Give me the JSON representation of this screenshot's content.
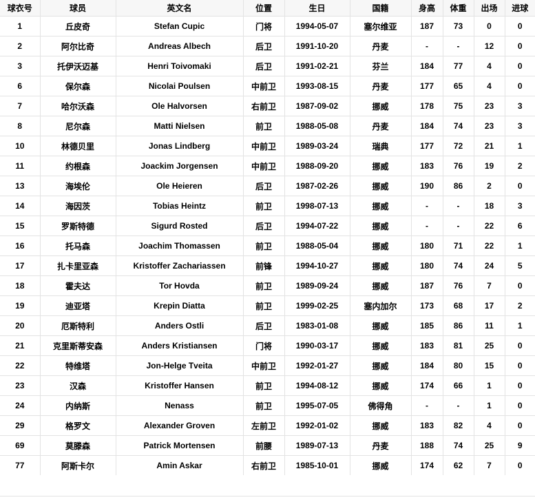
{
  "table": {
    "columns": [
      {
        "key": "jersey-number",
        "label": "球衣号"
      },
      {
        "key": "player-name",
        "label": "球员"
      },
      {
        "key": "english-name",
        "label": "英文名"
      },
      {
        "key": "position",
        "label": "位置"
      },
      {
        "key": "birthday",
        "label": "生日"
      },
      {
        "key": "nationality",
        "label": "国籍"
      },
      {
        "key": "height",
        "label": "身高"
      },
      {
        "key": "weight",
        "label": "体重"
      },
      {
        "key": "appearances",
        "label": "出场"
      },
      {
        "key": "goals",
        "label": "进球"
      }
    ],
    "rows": [
      [
        "1",
        "丘皮奇",
        "Stefan Cupic",
        "门将",
        "1994-05-07",
        "塞尔维亚",
        "187",
        "73",
        "0",
        "0"
      ],
      [
        "2",
        "阿尔比奇",
        "Andreas Albech",
        "后卫",
        "1991-10-20",
        "丹麦",
        "-",
        "-",
        "12",
        "0"
      ],
      [
        "3",
        "托伊沃迈基",
        "Henri Toivomaki",
        "后卫",
        "1991-02-21",
        "芬兰",
        "184",
        "77",
        "4",
        "0"
      ],
      [
        "6",
        "保尔森",
        "Nicolai Poulsen",
        "中前卫",
        "1993-08-15",
        "丹麦",
        "177",
        "65",
        "4",
        "0"
      ],
      [
        "7",
        "哈尔沃森",
        "Ole Halvorsen",
        "右前卫",
        "1987-09-02",
        "挪威",
        "178",
        "75",
        "23",
        "3"
      ],
      [
        "8",
        "尼尔森",
        "Matti Nielsen",
        "前卫",
        "1988-05-08",
        "丹麦",
        "184",
        "74",
        "23",
        "3"
      ],
      [
        "10",
        "林德贝里",
        "Jonas Lindberg",
        "中前卫",
        "1989-03-24",
        "瑞典",
        "177",
        "72",
        "21",
        "1"
      ],
      [
        "11",
        "约根森",
        "Joackim Jorgensen",
        "中前卫",
        "1988-09-20",
        "挪威",
        "183",
        "76",
        "19",
        "2"
      ],
      [
        "13",
        "海埃伦",
        "Ole Heieren",
        "后卫",
        "1987-02-26",
        "挪威",
        "190",
        "86",
        "2",
        "0"
      ],
      [
        "14",
        "海因茨",
        "Tobias Heintz",
        "前卫",
        "1998-07-13",
        "挪威",
        "-",
        "-",
        "18",
        "3"
      ],
      [
        "15",
        "罗斯特德",
        "Sigurd Rosted",
        "后卫",
        "1994-07-22",
        "挪威",
        "-",
        "-",
        "22",
        "6"
      ],
      [
        "16",
        "托马森",
        "Joachim Thomassen",
        "前卫",
        "1988-05-04",
        "挪威",
        "180",
        "71",
        "22",
        "1"
      ],
      [
        "17",
        "扎卡里亚森",
        "Kristoffer Zachariassen",
        "前锋",
        "1994-10-27",
        "挪威",
        "180",
        "74",
        "24",
        "5"
      ],
      [
        "18",
        "霍夫达",
        "Tor Hovda",
        "前卫",
        "1989-09-24",
        "挪威",
        "187",
        "76",
        "7",
        "0"
      ],
      [
        "19",
        "迪亚塔",
        "Krepin Diatta",
        "前卫",
        "1999-02-25",
        "塞内加尔",
        "173",
        "68",
        "17",
        "2"
      ],
      [
        "20",
        "厄斯特利",
        "Anders Ostli",
        "后卫",
        "1983-01-08",
        "挪威",
        "185",
        "86",
        "11",
        "1"
      ],
      [
        "21",
        "克里斯蒂安森",
        "Anders Kristiansen",
        "门将",
        "1990-03-17",
        "挪威",
        "183",
        "81",
        "25",
        "0"
      ],
      [
        "22",
        "特维塔",
        "Jon-Helge Tveita",
        "中前卫",
        "1992-01-27",
        "挪威",
        "184",
        "80",
        "15",
        "0"
      ],
      [
        "23",
        "汉森",
        "Kristoffer Hansen",
        "前卫",
        "1994-08-12",
        "挪威",
        "174",
        "66",
        "1",
        "0"
      ],
      [
        "24",
        "内纳斯",
        "Nenass",
        "前卫",
        "1995-07-05",
        "佛得角",
        "-",
        "-",
        "1",
        "0"
      ],
      [
        "29",
        "格罗文",
        "Alexander Groven",
        "左前卫",
        "1992-01-02",
        "挪威",
        "183",
        "82",
        "4",
        "0"
      ],
      [
        "69",
        "莫滕森",
        "Patrick Mortensen",
        "前腰",
        "1989-07-13",
        "丹麦",
        "188",
        "74",
        "25",
        "9"
      ],
      [
        "77",
        "阿斯卡尔",
        "Amin Askar",
        "右前卫",
        "1985-10-01",
        "挪威",
        "174",
        "62",
        "7",
        "0"
      ]
    ]
  },
  "colors": {
    "header_background": "#f7f7f7",
    "row_background": "#ffffff",
    "grid_border": "#e3e3e3",
    "text": "#000000",
    "footer_divider": "#e2e2e2"
  }
}
